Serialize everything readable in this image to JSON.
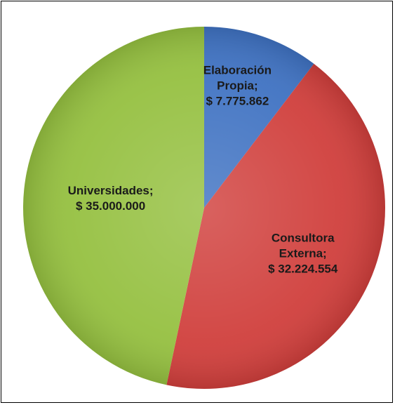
{
  "chart_data": {
    "type": "pie",
    "title": "",
    "slices": [
      {
        "category": "Elaboración Propia",
        "value": 7775862,
        "value_label": "$ 7.775.862",
        "label_lines": [
          "Elaboración",
          "Propia;",
          "$ 7.775.862"
        ],
        "color": "#3f72c2"
      },
      {
        "category": "Consultora Externa",
        "value": 32224554,
        "value_label": "$ 32.224.554",
        "label_lines": [
          "Consultora",
          "Externa;",
          "$ 32.224.554"
        ],
        "color": "#d03f3c"
      },
      {
        "category": "Universidades",
        "value": 35000000,
        "value_label": "$ 35.000.000",
        "label_lines": [
          "Universidades;",
          "$ 35.000.000"
        ],
        "color": "#95c040"
      }
    ],
    "start_angle": "12 o'clock",
    "direction": "clockwise",
    "legend": "none",
    "data_labels": "inside"
  }
}
